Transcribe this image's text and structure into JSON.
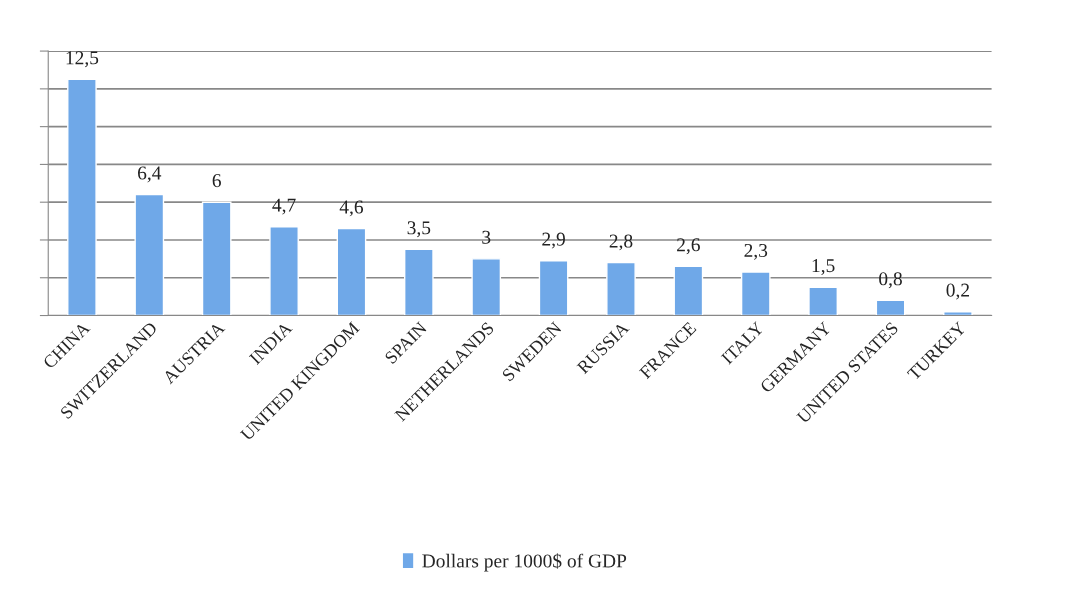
{
  "chart_data": {
    "type": "bar",
    "categories": [
      "CHINA",
      "SWITZERLAND",
      "AUSTRIA",
      "INDIA",
      "UNITED KINGDOM",
      "SPAIN",
      "NETHERLANDS",
      "SWEDEN",
      "RUSSIA",
      "FRANCE",
      "ITALY",
      "GERMANY",
      "UNITED STATES",
      "TURKEY"
    ],
    "series": [
      {
        "name": "Dollars per 1000$ of GDP",
        "color": "#6fa8e8",
        "values": [
          12.5,
          6.4,
          6,
          4.7,
          4.6,
          3.5,
          3,
          2.9,
          2.8,
          2.6,
          2.3,
          1.5,
          0.8,
          0.2
        ],
        "value_labels": [
          "12,5",
          "6,4",
          "6",
          "4,7",
          "4,6",
          "3,5",
          "3",
          "2,9",
          "2,8",
          "2,6",
          "2,3",
          "1,5",
          "0,8",
          "0,2"
        ]
      }
    ],
    "ylim": [
      0,
      14
    ],
    "yticks": [
      {
        "value": 0,
        "label": null
      },
      {
        "value": 2,
        "label": null
      },
      {
        "value": 4,
        "label": null
      },
      {
        "value": 6,
        "label": null
      },
      {
        "value": 8,
        "label": null
      },
      {
        "value": 10,
        "label": null
      },
      {
        "value": 12,
        "label": null
      },
      {
        "value": 14,
        "label": null
      }
    ],
    "tick_labels": "x",
    "grid": "y",
    "legend": "bottom"
  }
}
